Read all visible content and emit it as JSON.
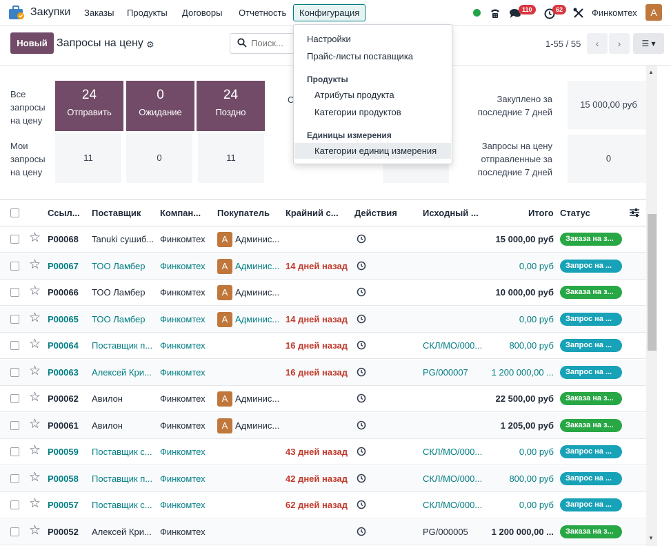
{
  "navbar": {
    "app_name": "Закупки",
    "menus": [
      "Заказы",
      "Продукты",
      "Договоры",
      "Отчетность",
      "Конфигурация"
    ],
    "messages_badge": "110",
    "activities_badge": "62",
    "company": "Финкомтех",
    "avatar_letter": "A"
  },
  "control": {
    "new_button": "Новый",
    "title": "Запросы на цену",
    "search_placeholder": "Поиск...",
    "pager": "1-55 / 55"
  },
  "dashboard": {
    "all_label": "Все запросы на цену",
    "my_label": "Мои запросы на цену",
    "tiles": [
      {
        "value": "24",
        "label": "Отправить",
        "my": "11"
      },
      {
        "value": "0",
        "label": "Ожидание",
        "my": "0"
      },
      {
        "value": "24",
        "label": "Поздно",
        "my": "11"
      }
    ],
    "hidden_label_fragment": "С",
    "purchased_label": "Закуплено за последние 7 дней",
    "purchased_value": "15 000,00 руб",
    "sent_label": "Запросы на цену отправленные за последние 7 дней",
    "sent_value": "0"
  },
  "table": {
    "headers": [
      "Ссыл...",
      "Поставщик",
      "Компан...",
      "Покупатель",
      "Крайний с...",
      "Действия",
      "Исходный ...",
      "Итого",
      "Статус"
    ],
    "rows": [
      {
        "ref": "P00068",
        "vendor": "Tanuki сушиб...",
        "company": "Финкомтех",
        "buyer": "Админис...",
        "deadline": "",
        "origin": "",
        "total": "15 000,00 руб",
        "status": "Заказа на з...",
        "buyer_letter": "A"
      },
      {
        "ref": "P00067",
        "vendor": "ТОО Ламбер",
        "company": "Финкомтех",
        "buyer": "Админис...",
        "deadline": "14 дней назад",
        "origin": "",
        "total": "0,00 руб",
        "status": "Запрос на ...",
        "buyer_letter": "A"
      },
      {
        "ref": "P00066",
        "vendor": "ТОО Ламбер",
        "company": "Финкомтех",
        "buyer": "Админис...",
        "deadline": "",
        "origin": "",
        "total": "10 000,00 руб",
        "status": "Заказа на з...",
        "buyer_letter": "A"
      },
      {
        "ref": "P00065",
        "vendor": "ТОО Ламбер",
        "company": "Финкомтех",
        "buyer": "Админис...",
        "deadline": "14 дней назад",
        "origin": "",
        "total": "0,00 руб",
        "status": "Запрос на ...",
        "buyer_letter": "A"
      },
      {
        "ref": "P00064",
        "vendor": "Поставщик п...",
        "company": "Финкомтех",
        "buyer": "",
        "deadline": "16 дней назад",
        "origin": "СКЛ/МО/000...",
        "total": "800,00 руб",
        "status": "Запрос на ...",
        "buyer_letter": ""
      },
      {
        "ref": "P00063",
        "vendor": "Алексей Кри...",
        "company": "Финкомтех",
        "buyer": "",
        "deadline": "16 дней назад",
        "origin": "PG/000007",
        "total": "1 200 000,00 ...",
        "status": "Запрос на ...",
        "buyer_letter": ""
      },
      {
        "ref": "P00062",
        "vendor": "Авилон",
        "company": "Финкомтех",
        "buyer": "Админис...",
        "deadline": "",
        "origin": "",
        "total": "22 500,00 руб",
        "status": "Заказа на з...",
        "buyer_letter": "A"
      },
      {
        "ref": "P00061",
        "vendor": "Авилон",
        "company": "Финкомтех",
        "buyer": "Админис...",
        "deadline": "",
        "origin": "",
        "total": "1 205,00 руб",
        "status": "Заказа на з...",
        "buyer_letter": "A"
      },
      {
        "ref": "P00059",
        "vendor": "Поставщик с...",
        "company": "Финкомтех",
        "buyer": "",
        "deadline": "43 дней назад",
        "origin": "СКЛ/МО/000...",
        "total": "0,00 руб",
        "status": "Запрос на ...",
        "buyer_letter": ""
      },
      {
        "ref": "P00058",
        "vendor": "Поставщик п...",
        "company": "Финкомтех",
        "buyer": "",
        "deadline": "42 дней назад",
        "origin": "СКЛ/МО/000...",
        "total": "800,00 руб",
        "status": "Запрос на ...",
        "buyer_letter": ""
      },
      {
        "ref": "P00057",
        "vendor": "Поставщик с...",
        "company": "Финкомтех",
        "buyer": "",
        "deadline": "62 дней назад",
        "origin": "СКЛ/МО/000...",
        "total": "0,00 руб",
        "status": "Запрос на ...",
        "buyer_letter": ""
      },
      {
        "ref": "P00052",
        "vendor": "Алексей Кри...",
        "company": "Финкомтех",
        "buyer": "",
        "deadline": "",
        "origin": "PG/000005",
        "total": "1 200 000,00 ...",
        "status": "Заказа на з...",
        "buyer_letter": ""
      }
    ]
  },
  "dropdown": {
    "items": [
      "Настройки",
      "Прайс-листы поставщика"
    ],
    "products_header": "Продукты",
    "products_items": [
      "Атрибуты продукта",
      "Категории продуктов"
    ],
    "uom_header": "Единицы измерения",
    "uom_items": [
      "Категории единиц измерения"
    ]
  },
  "colors": {
    "brand": "#714b67",
    "link": "#017e84",
    "danger": "#c0392b",
    "status_green": "#28a745",
    "status_blue": "#17a2b8"
  }
}
